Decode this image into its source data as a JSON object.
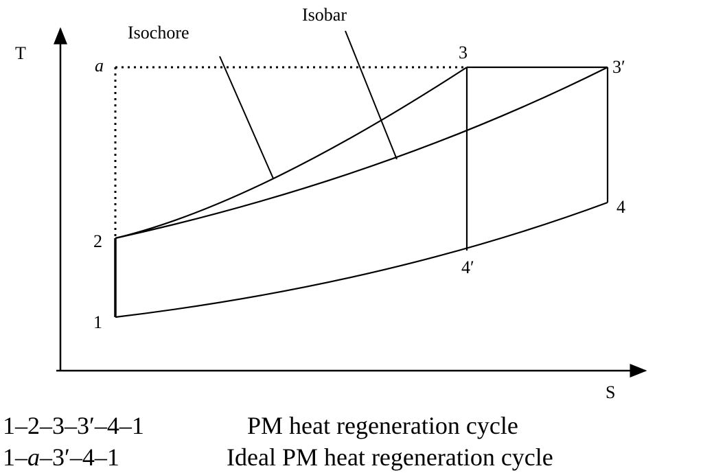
{
  "axes": {
    "y_label": "T",
    "x_label": "S"
  },
  "curve_labels": {
    "isochore": "Isochore",
    "isobar": "Isobar"
  },
  "points": {
    "p1": "1",
    "p2": "2",
    "p3": "3",
    "p3prime": "3′",
    "p4": "4",
    "p4prime": "4′",
    "a": "a"
  },
  "legend": [
    {
      "cycle": "1–2–3–3′–4–1",
      "description": "PM heat regeneration cycle"
    },
    {
      "cycle_parts": [
        "1–",
        "a",
        "–3′–4–1"
      ],
      "description": "Ideal PM heat regeneration cycle"
    }
  ]
}
